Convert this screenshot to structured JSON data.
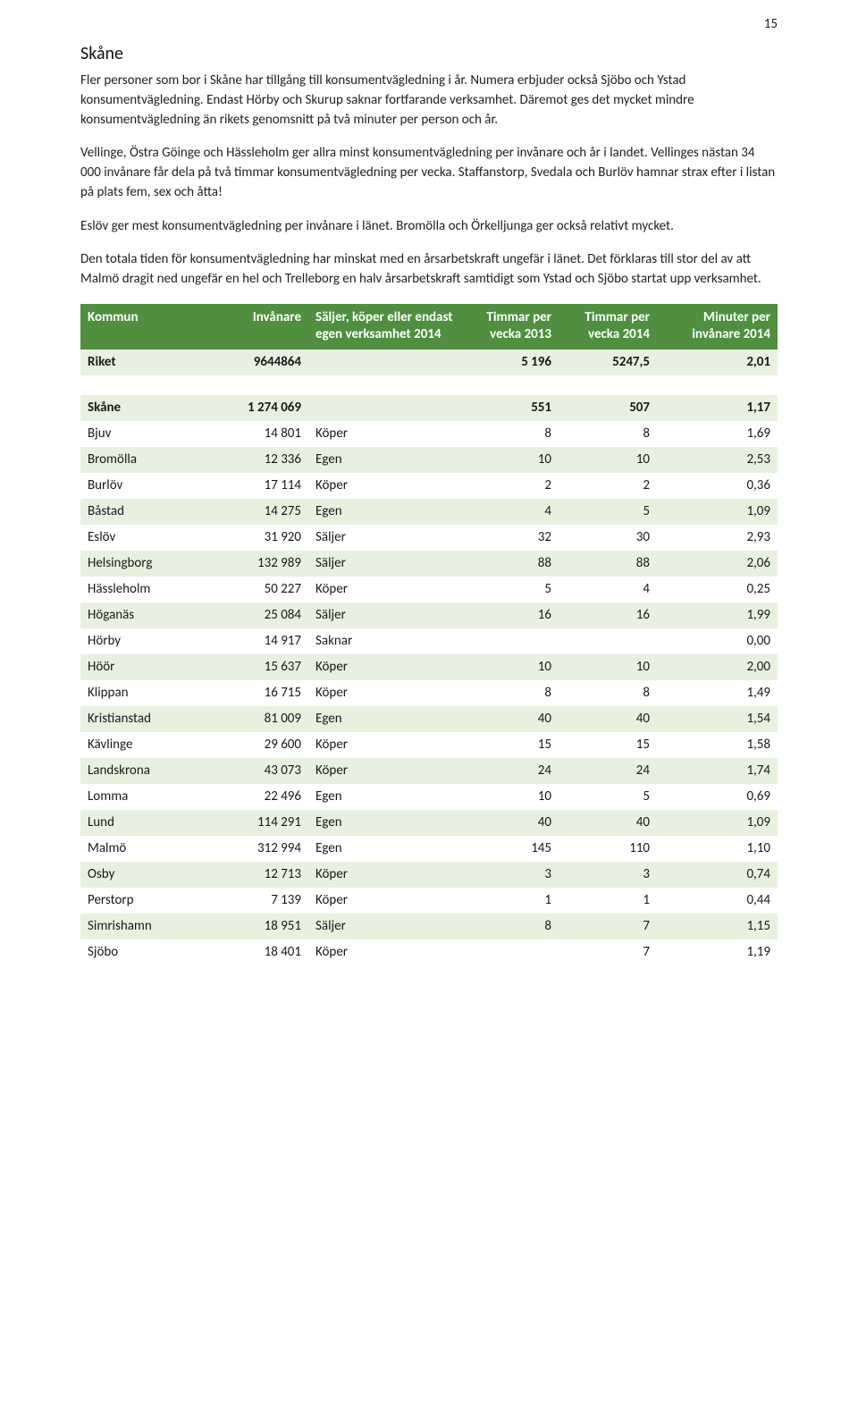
{
  "page_number": "15",
  "heading": "Skåne",
  "paragraphs": [
    "Fler personer som bor i Skåne har tillgång till konsumentvägledning i år. Numera erbjuder också Sjöbo och Ystad konsumentvägledning. Endast Hörby och Skurup saknar fortfarande verksamhet. Däremot ges det mycket mindre konsumentvägledning än rikets genomsnitt på två minuter per person och år.",
    "Vellinge, Östra Göinge och Hässleholm ger allra minst konsumentvägledning per invånare och år i landet. Vellinges nästan 34 000 invånare får dela på två timmar konsumentvägledning per vecka. Staffanstorp, Svedala och Burlöv hamnar strax efter i listan på plats fem, sex och åtta!",
    "Eslöv ger mest konsumentvägledning per invånare i länet. Bromölla och Örkelljunga ger också relativt mycket.",
    "Den totala tiden för konsumentvägledning har minskat med en årsarbetskraft ungefär i länet. Det förklaras till stor del av att Malmö dragit ned ungefär en hel och Trelleborg en halv årsarbetskraft samtidigt som Ystad och Sjöbo startat upp verksamhet."
  ],
  "table": {
    "headers": {
      "kommun": "Kommun",
      "invanare": "Invånare",
      "sk": "Säljer, köper eller endast egen verksamhet 2014",
      "t2013": "Timmar per vecka 2013",
      "t2014": "Timmar per vecka 2014",
      "min": "Minuter per invånare 2014"
    },
    "riket": {
      "kommun": "Riket",
      "inv": "9644864",
      "sk": "",
      "t1": "5 196",
      "t2": "5247,5",
      "min": "2,01"
    },
    "region": {
      "kommun": "Skåne",
      "inv": "1 274 069",
      "sk": "",
      "t1": "551",
      "t2": "507",
      "min": "1,17"
    },
    "rows": [
      {
        "kommun": "Bjuv",
        "inv": "14 801",
        "sk": "Köper",
        "t1": "8",
        "t2": "8",
        "min": "1,69"
      },
      {
        "kommun": "Bromölla",
        "inv": "12 336",
        "sk": "Egen",
        "t1": "10",
        "t2": "10",
        "min": "2,53"
      },
      {
        "kommun": "Burlöv",
        "inv": "17 114",
        "sk": "Köper",
        "t1": "2",
        "t2": "2",
        "min": "0,36"
      },
      {
        "kommun": "Båstad",
        "inv": "14 275",
        "sk": "Egen",
        "t1": "4",
        "t2": "5",
        "min": "1,09"
      },
      {
        "kommun": "Eslöv",
        "inv": "31 920",
        "sk": "Säljer",
        "t1": "32",
        "t2": "30",
        "min": "2,93"
      },
      {
        "kommun": "Helsingborg",
        "inv": "132 989",
        "sk": "Säljer",
        "t1": "88",
        "t2": "88",
        "min": "2,06"
      },
      {
        "kommun": "Hässleholm",
        "inv": "50 227",
        "sk": "Köper",
        "t1": "5",
        "t2": "4",
        "min": "0,25"
      },
      {
        "kommun": "Höganäs",
        "inv": "25 084",
        "sk": "Säljer",
        "t1": "16",
        "t2": "16",
        "min": "1,99"
      },
      {
        "kommun": "Hörby",
        "inv": "14 917",
        "sk": "Saknar",
        "t1": "",
        "t2": "",
        "min": "0,00"
      },
      {
        "kommun": "Höör",
        "inv": "15 637",
        "sk": "Köper",
        "t1": "10",
        "t2": "10",
        "min": "2,00"
      },
      {
        "kommun": "Klippan",
        "inv": "16 715",
        "sk": "Köper",
        "t1": "8",
        "t2": "8",
        "min": "1,49"
      },
      {
        "kommun": "Kristianstad",
        "inv": "81 009",
        "sk": "Egen",
        "t1": "40",
        "t2": "40",
        "min": "1,54"
      },
      {
        "kommun": "Kävlinge",
        "inv": "29 600",
        "sk": "Köper",
        "t1": "15",
        "t2": "15",
        "min": "1,58"
      },
      {
        "kommun": "Landskrona",
        "inv": "43 073",
        "sk": "Köper",
        "t1": "24",
        "t2": "24",
        "min": "1,74"
      },
      {
        "kommun": "Lomma",
        "inv": "22 496",
        "sk": "Egen",
        "t1": "10",
        "t2": "5",
        "min": "0,69"
      },
      {
        "kommun": "Lund",
        "inv": "114 291",
        "sk": "Egen",
        "t1": "40",
        "t2": "40",
        "min": "1,09"
      },
      {
        "kommun": "Malmö",
        "inv": "312 994",
        "sk": "Egen",
        "t1": "145",
        "t2": "110",
        "min": "1,10"
      },
      {
        "kommun": "Osby",
        "inv": "12 713",
        "sk": "Köper",
        "t1": "3",
        "t2": "3",
        "min": "0,74"
      },
      {
        "kommun": "Perstorp",
        "inv": "7 139",
        "sk": "Köper",
        "t1": "1",
        "t2": "1",
        "min": "0,44"
      },
      {
        "kommun": "Simrishamn",
        "inv": "18 951",
        "sk": "Säljer",
        "t1": "8",
        "t2": "7",
        "min": "1,15"
      },
      {
        "kommun": "Sjöbo",
        "inv": "18 401",
        "sk": "Köper",
        "t1": "",
        "t2": "7",
        "min": "1,19"
      }
    ],
    "colors": {
      "header_bg": "#4f8f3f",
      "header_fg": "#ffffff",
      "stripe_bg": "#e8f1df",
      "plain_bg": "#ffffff"
    }
  }
}
